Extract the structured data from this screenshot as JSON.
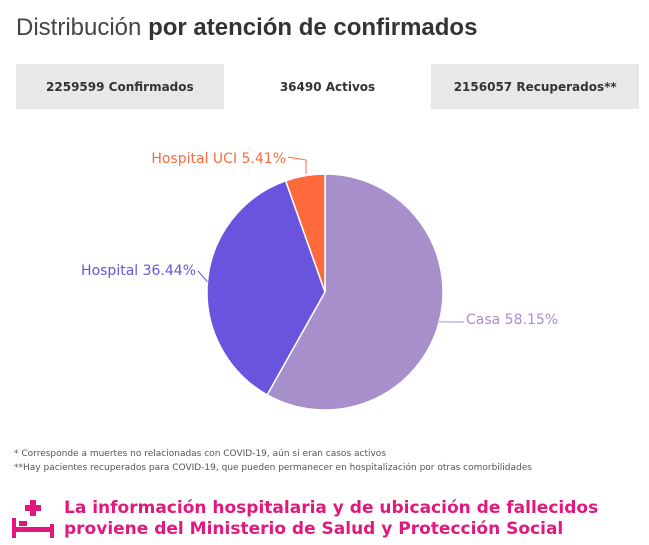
{
  "title": {
    "light": "Distribución",
    "bold": "por atención de confirmados"
  },
  "tabs": [
    {
      "label": "2259599 Confirmados",
      "active": false
    },
    {
      "label": "36490 Activos",
      "active": true
    },
    {
      "label": "2156057 Recuperados**",
      "active": false
    }
  ],
  "chart_data": {
    "type": "pie",
    "slices": [
      {
        "label": "Casa 58.15%",
        "value": 58.15,
        "color": "#a68fca"
      },
      {
        "label": "Hospital 36.44%",
        "value": 36.44,
        "color": "#6a54de"
      },
      {
        "label": "Hospital UCI 5.41%",
        "value": 5.41,
        "color": "#ff6a3d"
      }
    ],
    "label_colors": {
      "Casa": "#a68fca",
      "Hospital": "#6a54de",
      "Hospital UCI": "#ff6a3d"
    }
  },
  "notes": {
    "note1": "* Corresponde a muertes no relacionadas con COVID-19, aún si eran casos activos",
    "note2": "**Hay pacientes recuperados para COVID-19, que pueden permanecer en hospitalización por otras comorbilidades"
  },
  "footer": {
    "icon": "hospital-bed-icon",
    "line1": "La información hospitalaria y de ubicación de fallecidos",
    "line2": "proviene del Ministerio de Salud y Protección Social",
    "color": "#e2187e"
  }
}
